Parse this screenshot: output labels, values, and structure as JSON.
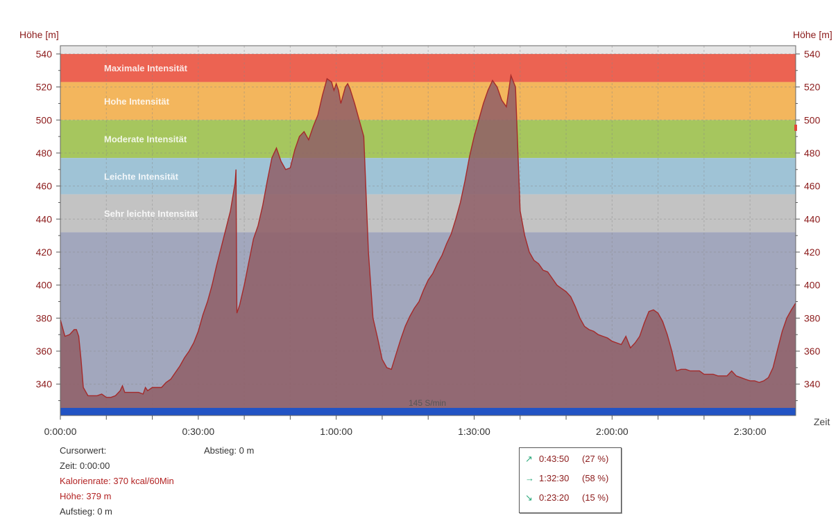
{
  "chart_data": {
    "type": "area",
    "ylabel_left": "Höhe [m]",
    "ylabel_right": "Höhe [m]",
    "xlabel": "Zeit",
    "ylim": [
      321,
      545
    ],
    "xlim_seconds": [
      0,
      9596
    ],
    "y_ticks": [
      340,
      360,
      380,
      400,
      420,
      440,
      460,
      480,
      500,
      520,
      540
    ],
    "x_ticks": [
      "0:00:00",
      "0:30:00",
      "1:00:00",
      "1:30:00",
      "2:00:00",
      "2:30:00"
    ],
    "grid": true,
    "zones": [
      {
        "name": "Maximale Intensität",
        "from": 523,
        "to": 540,
        "color": "#ec6352"
      },
      {
        "name": "Hohe Intensität",
        "from": 500,
        "to": 523,
        "color": "#f3b65d"
      },
      {
        "name": "Moderate Intensität",
        "from": 477,
        "to": 500,
        "color": "#a6c65e"
      },
      {
        "name": "Leichte Intensität",
        "from": 455,
        "to": 477,
        "color": "#9fc3d6"
      },
      {
        "name": "Sehr leichte Intensität",
        "from": 432,
        "to": 455,
        "color": "#c3c3c3"
      },
      {
        "name": "",
        "from": 321,
        "to": 432,
        "color": "#a2a7bd"
      }
    ],
    "cadence_label": "145 S/min",
    "series": [
      {
        "name": "Höhe",
        "color": "#a52a2a",
        "fill": "#8f5e66",
        "x_minutes": [
          0,
          1,
          2,
          3,
          3.5,
          4,
          4.5,
          5,
          6,
          7,
          8,
          9,
          10,
          11,
          12,
          13,
          13.5,
          14,
          14.5,
          15,
          16,
          17,
          18,
          18.5,
          19,
          20,
          21,
          22,
          23,
          24,
          25,
          26,
          27,
          28,
          29,
          30,
          31,
          32,
          33,
          34,
          35,
          36,
          37,
          38,
          38.2,
          38.4,
          39,
          40,
          41,
          42,
          43,
          44,
          45,
          46,
          47,
          48,
          49,
          50,
          51,
          52,
          53,
          54,
          55,
          56,
          57,
          58,
          59,
          59.5,
          60,
          60.5,
          61,
          62,
          62.5,
          63,
          64,
          65,
          66,
          67,
          68,
          69,
          70,
          71,
          72,
          73,
          74,
          75,
          76,
          77,
          78,
          79,
          80,
          81,
          82,
          83,
          84,
          85,
          86,
          87,
          88,
          89,
          90,
          91,
          92,
          93,
          94,
          95,
          96,
          97,
          98,
          99,
          100,
          101,
          102,
          103,
          104,
          105,
          106,
          107,
          108,
          109,
          110,
          111,
          112,
          113,
          114,
          115,
          116,
          117,
          118,
          119,
          120,
          121,
          122,
          123,
          124,
          125,
          126,
          127,
          128,
          129,
          130,
          131,
          132,
          133,
          134,
          135,
          136,
          137,
          138,
          139,
          140,
          141,
          142,
          143,
          144,
          145,
          146,
          147,
          148,
          149,
          150,
          151,
          152,
          153,
          154,
          155,
          156,
          157,
          158,
          159,
          159.9
        ],
        "elevation_m": [
          379,
          369,
          370,
          373,
          373,
          369,
          355,
          338,
          333,
          333,
          333,
          334,
          332,
          332,
          333,
          336,
          339,
          335,
          335,
          335,
          335,
          335,
          334,
          338,
          336,
          338,
          338,
          338,
          341,
          343,
          347,
          351,
          356,
          360,
          365,
          372,
          382,
          390,
          400,
          412,
          423,
          434,
          445,
          462,
          470,
          383,
          388,
          400,
          414,
          428,
          436,
          448,
          463,
          477,
          483,
          475,
          470,
          471,
          482,
          490,
          493,
          488,
          496,
          503,
          515,
          525,
          523,
          518,
          522,
          518,
          510,
          520,
          522,
          519,
          510,
          500,
          490,
          420,
          380,
          368,
          355,
          350,
          349,
          358,
          367,
          375,
          381,
          386,
          390,
          397,
          403,
          407,
          413,
          418,
          425,
          431,
          440,
          450,
          463,
          478,
          490,
          500,
          510,
          518,
          524,
          520,
          512,
          508,
          527,
          520,
          445,
          430,
          420,
          415,
          413,
          409,
          408,
          404,
          400,
          398,
          396,
          393,
          387,
          380,
          375,
          373,
          372,
          370,
          369,
          368,
          366,
          365,
          364,
          369,
          362,
          365,
          369,
          377,
          384,
          385,
          383,
          378,
          370,
          360,
          348,
          349,
          349,
          348,
          348,
          348,
          346,
          346,
          346,
          345,
          345,
          345,
          348,
          345,
          344,
          343,
          342,
          342,
          341,
          342,
          344,
          350,
          361,
          372,
          380,
          385,
          389
        ]
      }
    ]
  },
  "info": {
    "cursor_label": "Cursorwert:",
    "time_label": "Zeit:",
    "time_value": "0:00:00",
    "calorie_label": "Kalorienrate:",
    "calorie_value": "370 kcal/60Min",
    "height_label": "Höhe:",
    "height_value": "379 m",
    "ascent_label": "Aufstieg:",
    "ascent_value": "0 m",
    "descent_label": "Abstieg:",
    "descent_value": "0 m"
  },
  "legend": [
    {
      "icon": "ascent-arrow-icon",
      "glyph": "↗",
      "time": "0:43:50",
      "pct": "(27 %)"
    },
    {
      "icon": "flat-arrow-icon",
      "glyph": "→",
      "time": "1:32:30",
      "pct": "(58 %)"
    },
    {
      "icon": "descent-arrow-icon",
      "glyph": "↘",
      "time": "0:23:20",
      "pct": "(15 %)"
    }
  ]
}
